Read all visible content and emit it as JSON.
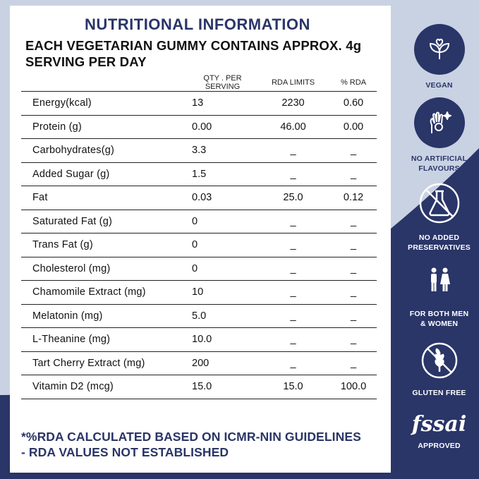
{
  "title": "NUTRITIONAL INFORMATION",
  "subtitle": "EACH VEGETARIAN GUMMY CONTAINS APPROX. 4g SERVING PER DAY",
  "table": {
    "headers": {
      "name": "",
      "qty": "QTY . PER SERVING",
      "rda": "RDA LIMITS",
      "pct": "% RDA"
    },
    "rows": [
      {
        "name": "Energy(kcal)",
        "qty": "13",
        "rda": "2230",
        "pct": "0.60"
      },
      {
        "name": "Protein (g)",
        "qty": "0.00",
        "rda": "46.00",
        "pct": "0.00"
      },
      {
        "name": "Carbohydrates(g)",
        "qty": "3.3",
        "rda": "_",
        "pct": "_"
      },
      {
        "name": "Added Sugar (g)",
        "qty": "1.5",
        "rda": "_",
        "pct": "_"
      },
      {
        "name": "Fat",
        "qty": "0.03",
        "rda": "25.0",
        "pct": "0.12"
      },
      {
        "name": "Saturated Fat (g)",
        "qty": "0",
        "rda": "_",
        "pct": "_"
      },
      {
        "name": "Trans Fat (g)",
        "qty": "0",
        "rda": "_",
        "pct": "_"
      },
      {
        "name": "Cholesterol (mg)",
        "qty": "0",
        "rda": "_",
        "pct": "_"
      },
      {
        "name": "Chamomile Extract (mg)",
        "qty": "10",
        "rda": "_",
        "pct": "_"
      },
      {
        "name": "Melatonin (mg)",
        "qty": "5.0",
        "rda": "_",
        "pct": "_"
      },
      {
        "name": "L-Theanine (mg)",
        "qty": "10.0",
        "rda": "_",
        "pct": "_"
      },
      {
        "name": "Tart Cherry Extract (mg)",
        "qty": "200",
        "rda": "_",
        "pct": "_"
      },
      {
        "name": "Vitamin D2 (mcg)",
        "qty": "15.0",
        "rda": "15.0",
        "pct": "100.0"
      }
    ]
  },
  "footnote": {
    "line1": "*%RDA CALCULATED BASED ON ICMR-NIN GUIDELINES",
    "line2": "- RDA VALUES NOT ESTABLISHED"
  },
  "badges": {
    "vegan": {
      "label": "VEGAN",
      "icon": "vegan-leaf-heart-icon"
    },
    "no_artificial": {
      "line1": "NO ARTIFICIAL",
      "line2": "FLAVOURS",
      "icon": "hand-sparkle-icon"
    },
    "no_preservatives": {
      "line1": "NO ADDED",
      "line2": "PRESERVATIVES",
      "icon": "no-flask-icon"
    },
    "men_women": {
      "line1": "FOR BOTH MEN",
      "line2": "& WOMEN",
      "icon": "man-woman-icon"
    },
    "gluten_free": {
      "label": "GLUTEN FREE",
      "icon": "no-wheat-icon"
    },
    "fssai": {
      "logo": "fssai",
      "label": "APPROVED",
      "icon": "fssai-logo"
    }
  },
  "colors": {
    "navy": "#2a3568",
    "light_bg": "#c9d2e3",
    "white": "#ffffff"
  }
}
